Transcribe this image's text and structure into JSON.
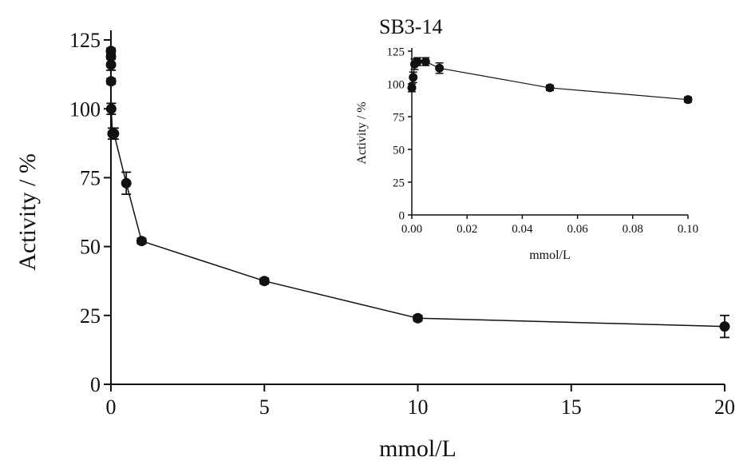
{
  "chart_data": [
    {
      "type": "line",
      "title": "",
      "xlabel": "mmol/L",
      "ylabel": "Activity / %",
      "xlim": [
        0,
        20
      ],
      "ylim": [
        0,
        125
      ],
      "xticks": [
        "0",
        "5",
        "10",
        "15",
        "20"
      ],
      "yticks": [
        "0",
        "25",
        "50",
        "75",
        "100",
        "125"
      ],
      "grid": false,
      "series": [
        {
          "points": [
            {
              "x": 0.0,
              "y": 121,
              "err": 1
            },
            {
              "x": 0.001,
              "y": 119,
              "err": 1
            },
            {
              "x": 0.002,
              "y": 116,
              "err": 2
            },
            {
              "x": 0.005,
              "y": 110,
              "err": 1
            },
            {
              "x": 0.01,
              "y": 100,
              "err": 2
            },
            {
              "x": 0.05,
              "y": 91,
              "err": 2
            },
            {
              "x": 0.1,
              "y": 91,
              "err": 2
            },
            {
              "x": 0.5,
              "y": 73,
              "err": 4
            },
            {
              "x": 1,
              "y": 52,
              "err": 1
            },
            {
              "x": 5,
              "y": 37.5,
              "err": 1
            },
            {
              "x": 10,
              "y": 24,
              "err": 1
            },
            {
              "x": 20,
              "y": 21,
              "err": 4
            }
          ]
        }
      ]
    },
    {
      "type": "line",
      "title": "SB3-14",
      "xlabel": "mmol/L",
      "ylabel": "Activity / %",
      "xlim": [
        0,
        0.1
      ],
      "ylim": [
        0,
        125
      ],
      "xticks": [
        "0.00",
        "0.02",
        "0.04",
        "0.06",
        "0.08",
        "0.10"
      ],
      "yticks": [
        "0",
        "25",
        "50",
        "75",
        "100",
        "125"
      ],
      "grid": false,
      "series": [
        {
          "points": [
            {
              "x": 0.0,
              "y": 97,
              "err": 3
            },
            {
              "x": 0.0005,
              "y": 105,
              "err": 4
            },
            {
              "x": 0.001,
              "y": 115,
              "err": 4
            },
            {
              "x": 0.002,
              "y": 117,
              "err": 3
            },
            {
              "x": 0.005,
              "y": 117,
              "err": 3
            },
            {
              "x": 0.01,
              "y": 112,
              "err": 4
            },
            {
              "x": 0.05,
              "y": 97,
              "err": 2
            },
            {
              "x": 0.1,
              "y": 88,
              "err": 2
            }
          ]
        }
      ]
    }
  ]
}
